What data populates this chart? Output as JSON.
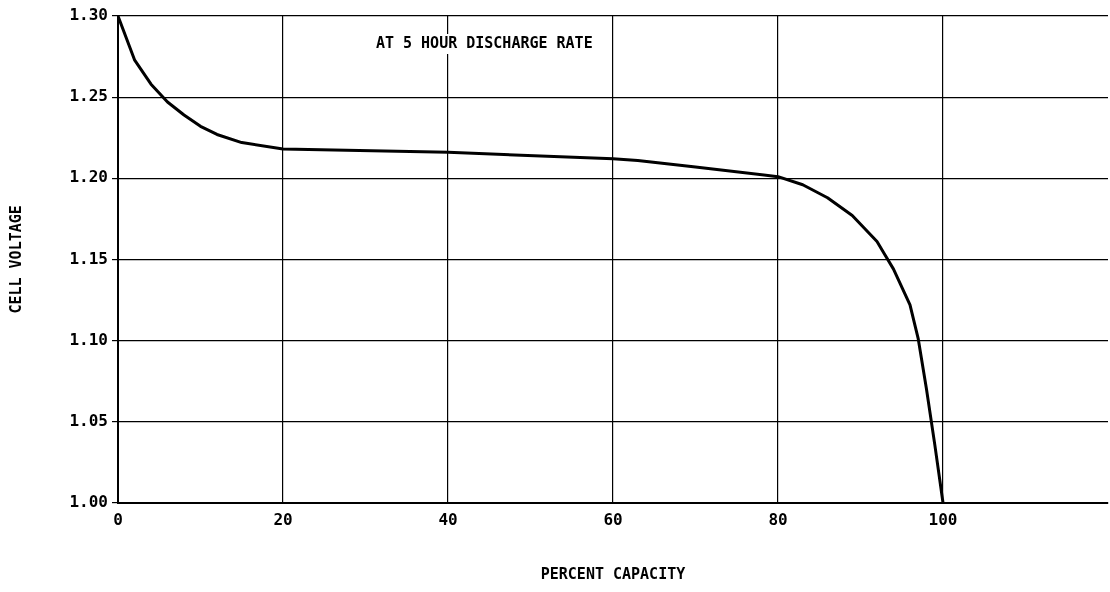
{
  "chart_data": {
    "type": "line",
    "xlabel": "PERCENT CAPACITY",
    "ylabel": "CELL VOLTAGE",
    "annotations": [
      "AT 5 HOUR DISCHARGE RATE"
    ],
    "x": [
      0,
      2,
      4,
      6,
      8,
      10,
      12,
      15,
      20,
      40,
      60,
      63,
      70,
      80,
      83,
      86,
      89,
      92,
      94,
      96,
      97,
      98,
      99,
      100
    ],
    "series": [
      {
        "color": "#000000",
        "values": [
          1.3,
          1.273,
          1.258,
          1.247,
          1.239,
          1.232,
          1.227,
          1.222,
          1.218,
          1.216,
          1.212,
          1.211,
          1.207,
          1.201,
          1.196,
          1.188,
          1.177,
          1.161,
          1.144,
          1.122,
          1.101,
          1.07,
          1.036,
          1.0
        ]
      }
    ],
    "xlim": [
      0,
      120
    ],
    "xticks": [
      0,
      20,
      40,
      60,
      80,
      100
    ],
    "ylim": [
      1.0,
      1.3
    ],
    "yticks": [
      {
        "value": 1.0,
        "label": "1.00"
      },
      {
        "value": 1.05,
        "label": "1.05"
      },
      {
        "value": 1.1,
        "label": "1.10"
      },
      {
        "value": 1.15,
        "label": "1.15"
      },
      {
        "value": 1.2,
        "label": "1.20"
      },
      {
        "value": 1.25,
        "label": "1.25"
      },
      {
        "value": 1.3,
        "label": "1.30"
      }
    ],
    "grid": true,
    "legend": false,
    "marker": "none",
    "line_style": "solid"
  }
}
